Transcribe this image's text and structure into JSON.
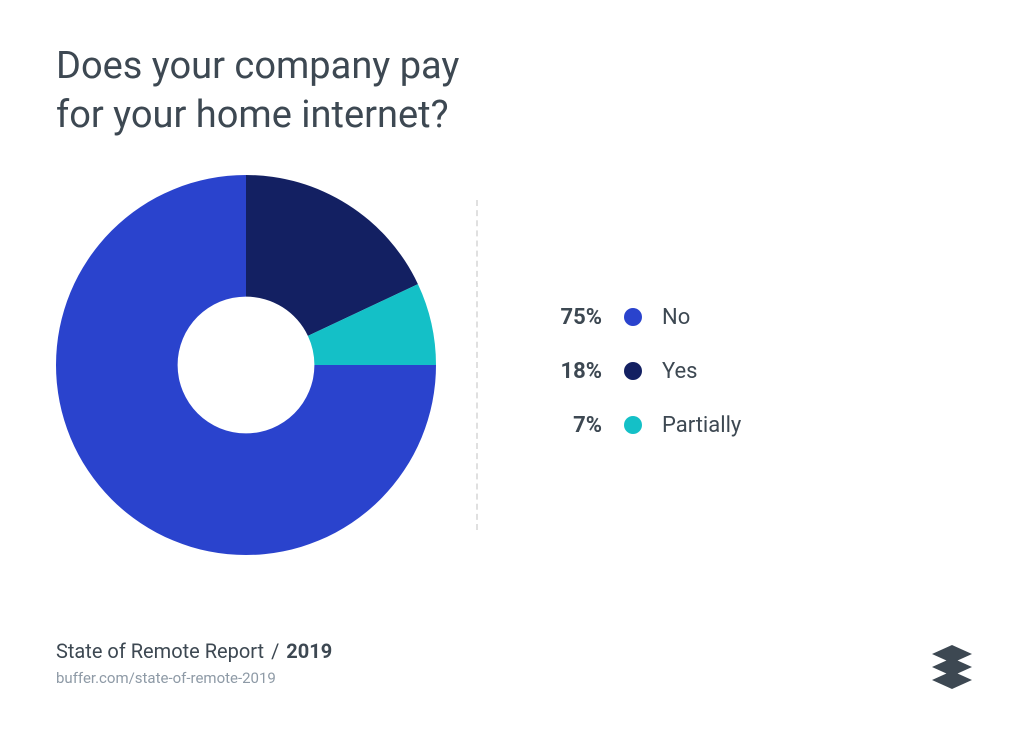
{
  "title": "Does your company pay\nfor your home internet?",
  "chart": {
    "type": "donut",
    "inner_radius_ratio": 0.36,
    "start_angle_deg": 0,
    "direction": "clockwise",
    "background_color": "#ffffff",
    "slices": [
      {
        "label": "Yes",
        "value": 18,
        "color": "#132062"
      },
      {
        "label": "Partially",
        "value": 7,
        "color": "#14c0c7"
      },
      {
        "label": "No",
        "value": 75,
        "color": "#2a43cd"
      }
    ]
  },
  "legend": {
    "order": [
      {
        "pct": "75%",
        "label": "No",
        "color": "#2a43cd"
      },
      {
        "pct": "18%",
        "label": "Yes",
        "color": "#132062"
      },
      {
        "pct": "7%",
        "label": "Partially",
        "color": "#14c0c7"
      }
    ],
    "pct_fontsize": 22,
    "label_fontsize": 22,
    "dot_size": 18
  },
  "divider": {
    "color": "#e0e0e0",
    "dash": true
  },
  "footer": {
    "report": "State of Remote Report",
    "year": "2019",
    "url": "buffer.com/state-of-remote-2019"
  },
  "logo": {
    "name": "buffer-logo",
    "color": "#3d4852"
  },
  "typography": {
    "title_fontsize": 38,
    "title_color": "#3d4852",
    "footer_fontsize": 20,
    "footer_sub_fontsize": 15,
    "footer_sub_color": "#8e9aa6"
  }
}
